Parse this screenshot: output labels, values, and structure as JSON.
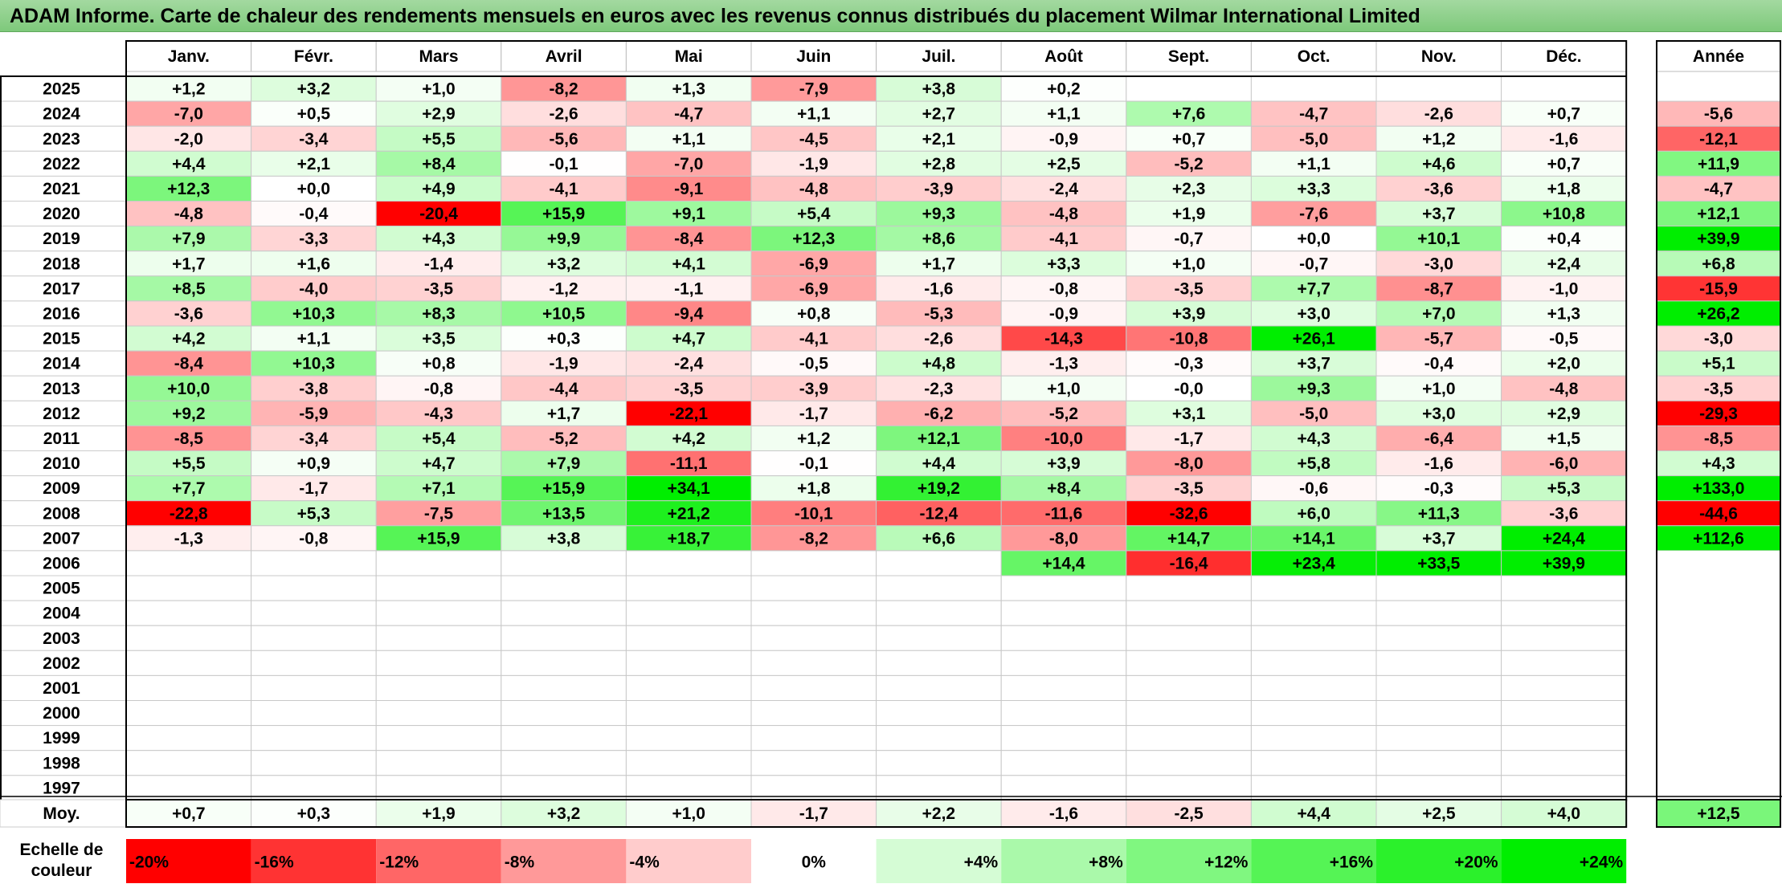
{
  "title": "ADAM Informe. Carte de chaleur des rendements mensuels en euros avec les revenus connus distribués du placement Wilmar International Limited",
  "chart_data": {
    "type": "heatmap",
    "title": "ADAM Informe. Carte de chaleur des rendements mensuels en euros avec les revenus connus distribués du placement Wilmar International Limited",
    "months": [
      "Janv.",
      "Févr.",
      "Mars",
      "Avril",
      "Mai",
      "Juin",
      "Juil.",
      "Août",
      "Sept.",
      "Oct.",
      "Nov.",
      "Déc."
    ],
    "annual_header": "Année",
    "rows": [
      {
        "year": "2025",
        "values": [
          "+1,2",
          "+3,2",
          "+1,0",
          "-8,2",
          "+1,3",
          "-7,9",
          "+3,8",
          "+0,2",
          "",
          "",
          "",
          ""
        ],
        "annual": ""
      },
      {
        "year": "2024",
        "values": [
          "-7,0",
          "+0,5",
          "+2,9",
          "-2,6",
          "-4,7",
          "+1,1",
          "+2,7",
          "+1,1",
          "+7,6",
          "-4,7",
          "-2,6",
          "+0,7"
        ],
        "annual": "-5,6"
      },
      {
        "year": "2023",
        "values": [
          "-2,0",
          "-3,4",
          "+5,5",
          "-5,6",
          "+1,1",
          "-4,5",
          "+2,1",
          "-0,9",
          "+0,7",
          "-5,0",
          "+1,2",
          "-1,6"
        ],
        "annual": "-12,1"
      },
      {
        "year": "2022",
        "values": [
          "+4,4",
          "+2,1",
          "+8,4",
          "-0,1",
          "-7,0",
          "-1,9",
          "+2,8",
          "+2,5",
          "-5,2",
          "+1,1",
          "+4,6",
          "+0,7"
        ],
        "annual": "+11,9"
      },
      {
        "year": "2021",
        "values": [
          "+12,3",
          "+0,0",
          "+4,9",
          "-4,1",
          "-9,1",
          "-4,8",
          "-3,9",
          "-2,4",
          "+2,3",
          "+3,3",
          "-3,6",
          "+1,8"
        ],
        "annual": "-4,7"
      },
      {
        "year": "2020",
        "values": [
          "-4,8",
          "-0,4",
          "-20,4",
          "+15,9",
          "+9,1",
          "+5,4",
          "+9,3",
          "-4,8",
          "+1,9",
          "-7,6",
          "+3,7",
          "+10,8"
        ],
        "annual": "+12,1"
      },
      {
        "year": "2019",
        "values": [
          "+7,9",
          "-3,3",
          "+4,3",
          "+9,9",
          "-8,4",
          "+12,3",
          "+8,6",
          "-4,1",
          "-0,7",
          "+0,0",
          "+10,1",
          "+0,4"
        ],
        "annual": "+39,9"
      },
      {
        "year": "2018",
        "values": [
          "+1,7",
          "+1,6",
          "-1,4",
          "+3,2",
          "+4,1",
          "-6,9",
          "+1,7",
          "+3,3",
          "+1,0",
          "-0,7",
          "-3,0",
          "+2,4"
        ],
        "annual": "+6,8"
      },
      {
        "year": "2017",
        "values": [
          "+8,5",
          "-4,0",
          "-3,5",
          "-1,2",
          "-1,1",
          "-6,9",
          "-1,6",
          "-0,8",
          "-3,5",
          "+7,7",
          "-8,7",
          "-1,0"
        ],
        "annual": "-15,9"
      },
      {
        "year": "2016",
        "values": [
          "-3,6",
          "+10,3",
          "+8,3",
          "+10,5",
          "-9,4",
          "+0,8",
          "-5,3",
          "-0,9",
          "+3,9",
          "+3,0",
          "+7,0",
          "+1,3"
        ],
        "annual": "+26,2"
      },
      {
        "year": "2015",
        "values": [
          "+4,2",
          "+1,1",
          "+3,5",
          "+0,3",
          "+4,7",
          "-4,1",
          "-2,6",
          "-14,3",
          "-10,8",
          "+26,1",
          "-5,7",
          "-0,5"
        ],
        "annual": "-3,0"
      },
      {
        "year": "2014",
        "values": [
          "-8,4",
          "+10,3",
          "+0,8",
          "-1,9",
          "-2,4",
          "-0,5",
          "+4,8",
          "-1,3",
          "-0,3",
          "+3,7",
          "-0,4",
          "+2,0"
        ],
        "annual": "+5,1"
      },
      {
        "year": "2013",
        "values": [
          "+10,0",
          "-3,8",
          "-0,8",
          "-4,4",
          "-3,5",
          "-3,9",
          "-2,3",
          "+1,0",
          "-0,0",
          "+9,3",
          "+1,0",
          "-4,8"
        ],
        "annual": "-3,5"
      },
      {
        "year": "2012",
        "values": [
          "+9,2",
          "-5,9",
          "-4,3",
          "+1,7",
          "-22,1",
          "-1,7",
          "-6,2",
          "-5,2",
          "+3,1",
          "-5,0",
          "+3,0",
          "+2,9"
        ],
        "annual": "-29,3"
      },
      {
        "year": "2011",
        "values": [
          "-8,5",
          "-3,4",
          "+5,4",
          "-5,2",
          "+4,2",
          "+1,2",
          "+12,1",
          "-10,0",
          "-1,7",
          "+4,3",
          "-6,4",
          "+1,5"
        ],
        "annual": "-8,5"
      },
      {
        "year": "2010",
        "values": [
          "+5,5",
          "+0,9",
          "+4,7",
          "+7,9",
          "-11,1",
          "-0,1",
          "+4,4",
          "+3,9",
          "-8,0",
          "+5,8",
          "-1,6",
          "-6,0"
        ],
        "annual": "+4,3"
      },
      {
        "year": "2009",
        "values": [
          "+7,7",
          "-1,7",
          "+7,1",
          "+15,9",
          "+34,1",
          "+1,8",
          "+19,2",
          "+8,4",
          "-3,5",
          "-0,6",
          "-0,3",
          "+5,3"
        ],
        "annual": "+133,0"
      },
      {
        "year": "2008",
        "values": [
          "-22,8",
          "+5,3",
          "-7,5",
          "+13,5",
          "+21,2",
          "-10,1",
          "-12,4",
          "-11,6",
          "-32,6",
          "+6,0",
          "+11,3",
          "-3,6"
        ],
        "annual": "-44,6"
      },
      {
        "year": "2007",
        "values": [
          "-1,3",
          "-0,8",
          "+15,9",
          "+3,8",
          "+18,7",
          "-8,2",
          "+6,6",
          "-8,0",
          "+14,7",
          "+14,1",
          "+3,7",
          "+24,4"
        ],
        "annual": "+112,6"
      },
      {
        "year": "2006",
        "values": [
          "",
          "",
          "",
          "",
          "",
          "",
          "",
          "+14,4",
          "-16,4",
          "+23,4",
          "+33,5",
          "+39,9"
        ],
        "annual": ""
      },
      {
        "year": "2005",
        "values": [
          "",
          "",
          "",
          "",
          "",
          "",
          "",
          "",
          "",
          "",
          "",
          ""
        ],
        "annual": ""
      },
      {
        "year": "2004",
        "values": [
          "",
          "",
          "",
          "",
          "",
          "",
          "",
          "",
          "",
          "",
          "",
          ""
        ],
        "annual": ""
      },
      {
        "year": "2003",
        "values": [
          "",
          "",
          "",
          "",
          "",
          "",
          "",
          "",
          "",
          "",
          "",
          ""
        ],
        "annual": ""
      },
      {
        "year": "2002",
        "values": [
          "",
          "",
          "",
          "",
          "",
          "",
          "",
          "",
          "",
          "",
          "",
          ""
        ],
        "annual": ""
      },
      {
        "year": "2001",
        "values": [
          "",
          "",
          "",
          "",
          "",
          "",
          "",
          "",
          "",
          "",
          "",
          ""
        ],
        "annual": ""
      },
      {
        "year": "2000",
        "values": [
          "",
          "",
          "",
          "",
          "",
          "",
          "",
          "",
          "",
          "",
          "",
          ""
        ],
        "annual": ""
      },
      {
        "year": "1999",
        "values": [
          "",
          "",
          "",
          "",
          "",
          "",
          "",
          "",
          "",
          "",
          "",
          ""
        ],
        "annual": ""
      },
      {
        "year": "1998",
        "values": [
          "",
          "",
          "",
          "",
          "",
          "",
          "",
          "",
          "",
          "",
          "",
          ""
        ],
        "annual": ""
      },
      {
        "year": "1997",
        "values": [
          "",
          "",
          "",
          "",
          "",
          "",
          "",
          "",
          "",
          "",
          "",
          ""
        ],
        "annual": ""
      }
    ],
    "average": {
      "label": "Moy.",
      "values": [
        "+0,7",
        "+0,3",
        "+1,9",
        "+3,2",
        "+1,0",
        "-1,7",
        "+2,2",
        "-1,6",
        "-2,5",
        "+4,4",
        "+2,5",
        "+4,0"
      ],
      "annual": "+12,5"
    },
    "scale": {
      "label_line1": "Echelle de",
      "label_line2": "couleur",
      "steps": [
        {
          "label": "-20%",
          "value": -20
        },
        {
          "label": "-16%",
          "value": -16
        },
        {
          "label": "-12%",
          "value": -12
        },
        {
          "label": "-8%",
          "value": -8
        },
        {
          "label": "-4%",
          "value": -4
        },
        {
          "label": "0%",
          "value": 0
        },
        {
          "label": "+4%",
          "value": 4
        },
        {
          "label": "+8%",
          "value": 8
        },
        {
          "label": "+12%",
          "value": 12
        },
        {
          "label": "+16%",
          "value": 16
        },
        {
          "label": "+20%",
          "value": 20
        },
        {
          "label": "+24%",
          "value": 24
        }
      ]
    },
    "colors": {
      "negative_max": "#ff0000",
      "neutral": "#ffffff",
      "positive_max": "#00ee00",
      "title_bg": "#8ccf88"
    }
  }
}
